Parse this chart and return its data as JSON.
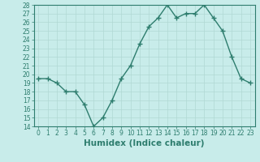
{
  "x": [
    0,
    1,
    2,
    3,
    4,
    5,
    6,
    7,
    8,
    9,
    10,
    11,
    12,
    13,
    14,
    15,
    16,
    17,
    18,
    19,
    20,
    21,
    22,
    23
  ],
  "y": [
    19.5,
    19.5,
    19.0,
    18.0,
    18.0,
    16.5,
    14.0,
    15.0,
    17.0,
    19.5,
    21.0,
    23.5,
    25.5,
    26.5,
    28.0,
    26.5,
    27.0,
    27.0,
    28.0,
    26.5,
    25.0,
    22.0,
    19.5,
    19.0
  ],
  "line_color": "#2e7d6e",
  "marker": "+",
  "marker_size": 4,
  "bg_color": "#c8ecea",
  "grid_color": "#b0d8d4",
  "xlabel": "Humidex (Indice chaleur)",
  "ylim": [
    14,
    28
  ],
  "xlim_min": -0.5,
  "xlim_max": 23.5,
  "yticks": [
    14,
    15,
    16,
    17,
    18,
    19,
    20,
    21,
    22,
    23,
    24,
    25,
    26,
    27,
    28
  ],
  "xticks": [
    0,
    1,
    2,
    3,
    4,
    5,
    6,
    7,
    8,
    9,
    10,
    11,
    12,
    13,
    14,
    15,
    16,
    17,
    18,
    19,
    20,
    21,
    22,
    23
  ],
  "xtick_labels": [
    "0",
    "1",
    "2",
    "3",
    "4",
    "5",
    "6",
    "7",
    "8",
    "9",
    "10",
    "11",
    "12",
    "13",
    "14",
    "15",
    "16",
    "17",
    "18",
    "19",
    "20",
    "21",
    "22",
    "23"
  ],
  "tick_fontsize": 5.5,
  "xlabel_fontsize": 7.5,
  "line_width": 1.0,
  "marker_linewidth": 1.0
}
